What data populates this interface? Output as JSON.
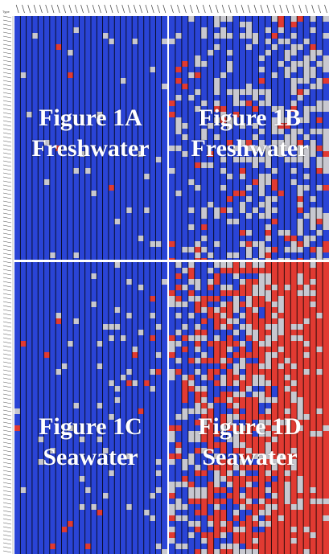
{
  "colors": {
    "low": "#2a44d6",
    "mid": "#c8c8d0",
    "high": "#e13a32",
    "separator": "#000000",
    "panel_border": "#ffffff"
  },
  "chart_data": {
    "type": "heatmap",
    "title": "",
    "axis_label_top": "Type",
    "row_groups": [
      "Freshwater",
      "Seawater"
    ],
    "column_groups": [
      {
        "id": "A",
        "columns": 26
      },
      {
        "id": "B",
        "columns": 25
      }
    ],
    "panels": [
      {
        "id": "1A",
        "label_line1": "Figure 1A",
        "label_line2": "Freshwater",
        "dominant": "low",
        "mixing": 0.04
      },
      {
        "id": "1B",
        "label_line1": "Figure 1B",
        "label_line2": "Freshwater",
        "dominant": "low",
        "mixing": 0.35
      },
      {
        "id": "1C",
        "label_line1": "Figure 1C",
        "label_line2": "Seawater",
        "dominant": "low",
        "mixing": 0.05
      },
      {
        "id": "1D",
        "label_line1": "Figure 1D",
        "label_line2": "Seawater",
        "dominant": "high",
        "mixing": 0.6
      }
    ],
    "value_scale": [
      "low",
      "mid",
      "high"
    ],
    "grid": true
  }
}
